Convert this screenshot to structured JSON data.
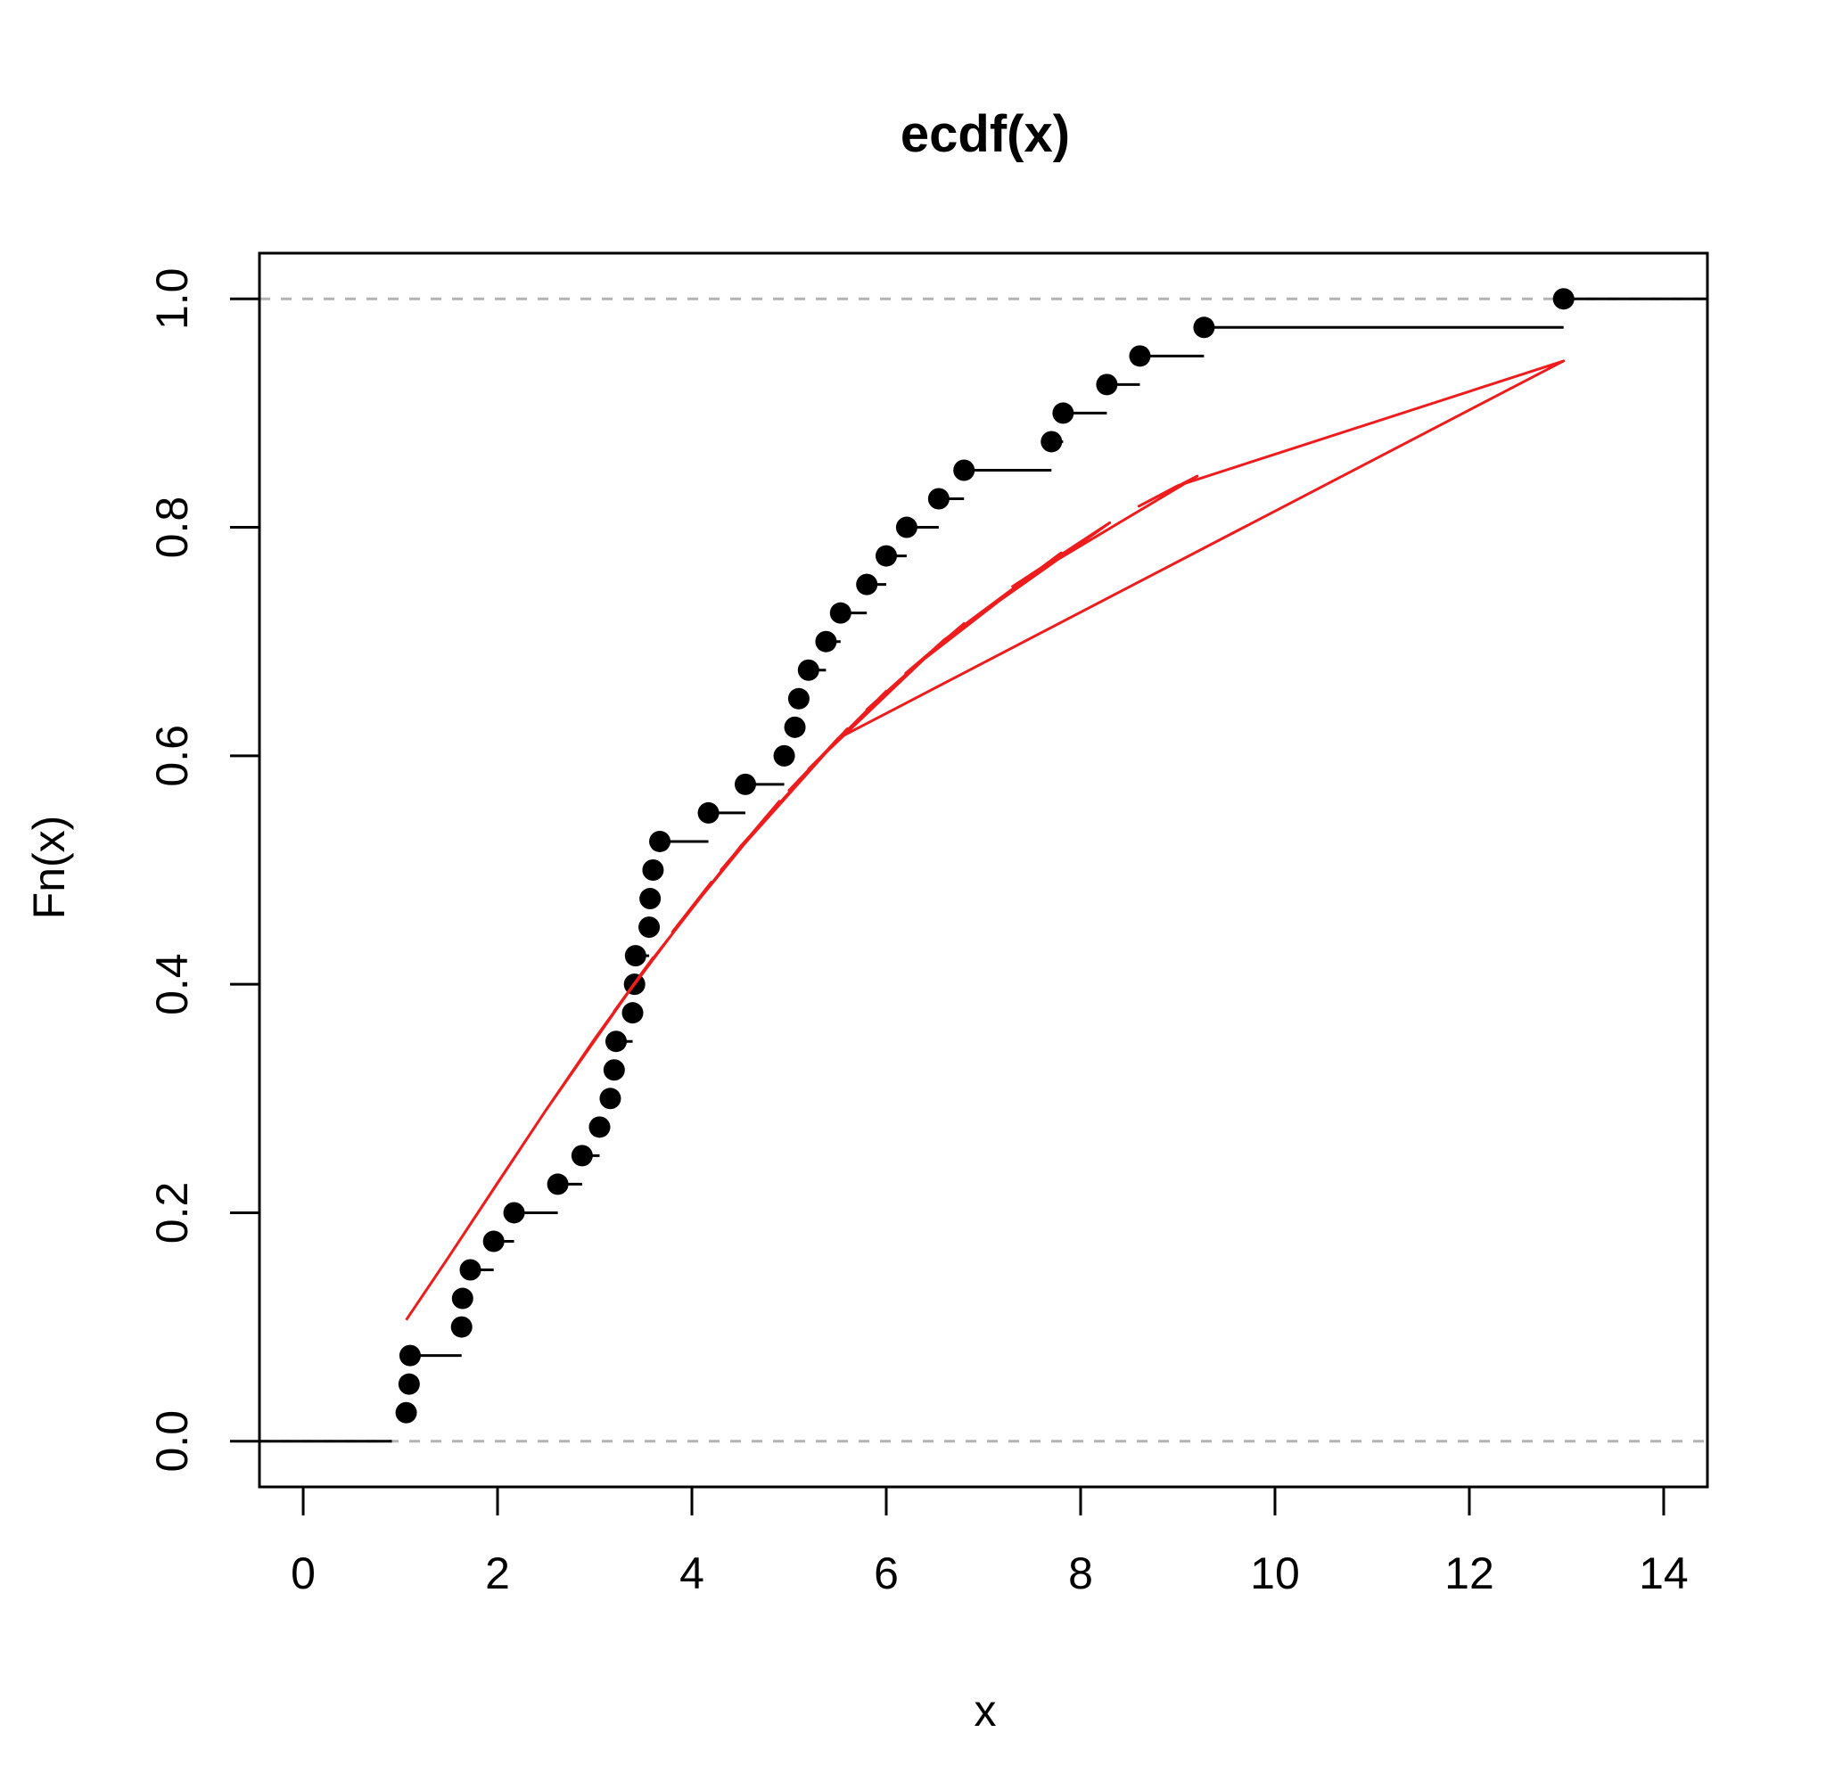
{
  "chart_data": {
    "type": "line",
    "title": "ecdf(x)",
    "xlabel": "x",
    "ylabel": "Fn(x)",
    "xlim": [
      -0.45,
      14.45
    ],
    "ylim": [
      -0.04,
      1.04
    ],
    "xticks": [
      0,
      2,
      4,
      6,
      8,
      10,
      12,
      14
    ],
    "yticks": [
      0.0,
      0.2,
      0.4,
      0.6,
      0.8,
      1.0
    ],
    "xtick_labels": [
      "0",
      "2",
      "4",
      "6",
      "8",
      "10",
      "12",
      "14"
    ],
    "ytick_labels": [
      "0.0",
      "0.2",
      "0.4",
      "0.6",
      "0.8",
      "1.0"
    ],
    "reference_lines_y": [
      0,
      1
    ],
    "ecdf_x": [
      1.06,
      1.09,
      1.1,
      1.63,
      1.64,
      1.72,
      1.96,
      2.17,
      2.62,
      2.87,
      3.05,
      3.16,
      3.2,
      3.22,
      3.39,
      3.41,
      3.42,
      3.56,
      3.57,
      3.6,
      3.67,
      4.17,
      4.55,
      4.95,
      5.06,
      5.1,
      5.2,
      5.38,
      5.53,
      5.8,
      6.0,
      6.21,
      6.54,
      6.8,
      7.7,
      7.82,
      8.27,
      8.61,
      9.27,
      12.97
    ],
    "ecdf_y": [
      0.025,
      0.05,
      0.075,
      0.1,
      0.125,
      0.15,
      0.175,
      0.2,
      0.225,
      0.25,
      0.275,
      0.3,
      0.325,
      0.35,
      0.375,
      0.4,
      0.425,
      0.45,
      0.475,
      0.5,
      0.525,
      0.55,
      0.575,
      0.6,
      0.625,
      0.65,
      0.675,
      0.7,
      0.725,
      0.75,
      0.775,
      0.8,
      0.825,
      0.85,
      0.875,
      0.9,
      0.925,
      0.95,
      0.975,
      1.0
    ],
    "fitted_line_x": [
      1.06,
      1.5,
      2.0,
      2.5,
      3.0,
      3.6,
      3.2,
      4.2,
      3.8,
      4.9,
      4.3,
      5.6,
      5.0,
      6.0,
      5.2,
      6.6,
      5.8,
      6.8,
      6.2,
      7.8,
      6.6,
      8.3,
      7.3,
      9.2,
      8.6,
      9.0,
      12.97,
      5.5,
      4.5,
      3.5,
      2.5,
      1.5,
      1.06
    ]
  }
}
